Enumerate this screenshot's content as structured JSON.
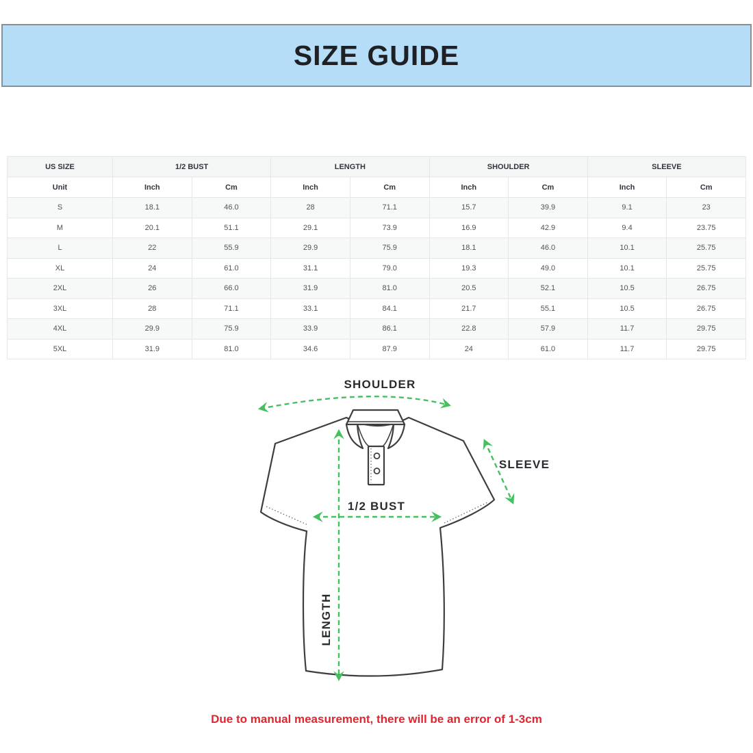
{
  "banner": {
    "title": "SIZE GUIDE"
  },
  "table": {
    "groups": [
      {
        "label": "US SIZE",
        "span": 1
      },
      {
        "label": "1/2 BUST",
        "span": 2
      },
      {
        "label": "LENGTH",
        "span": 2
      },
      {
        "label": "SHOULDER",
        "span": 2
      },
      {
        "label": "SLEEVE",
        "span": 2
      }
    ],
    "unit_row": [
      "Unit",
      "Inch",
      "Cm",
      "Inch",
      "Cm",
      "Inch",
      "Cm",
      "Inch",
      "Cm"
    ],
    "rows": [
      [
        "S",
        "18.1",
        "46.0",
        "28",
        "71.1",
        "15.7",
        "39.9",
        "9.1",
        "23"
      ],
      [
        "M",
        "20.1",
        "51.1",
        "29.1",
        "73.9",
        "16.9",
        "42.9",
        "9.4",
        "23.75"
      ],
      [
        "L",
        "22",
        "55.9",
        "29.9",
        "75.9",
        "18.1",
        "46.0",
        "10.1",
        "25.75"
      ],
      [
        "XL",
        "24",
        "61.0",
        "31.1",
        "79.0",
        "19.3",
        "49.0",
        "10.1",
        "25.75"
      ],
      [
        "2XL",
        "26",
        "66.0",
        "31.9",
        "81.0",
        "20.5",
        "52.1",
        "10.5",
        "26.75"
      ],
      [
        "3XL",
        "28",
        "71.1",
        "33.1",
        "84.1",
        "21.7",
        "55.1",
        "10.5",
        "26.75"
      ],
      [
        "4XL",
        "29.9",
        "75.9",
        "33.9",
        "86.1",
        "22.8",
        "57.9",
        "11.7",
        "29.75"
      ],
      [
        "5XL",
        "31.9",
        "81.0",
        "34.6",
        "87.9",
        "24",
        "61.0",
        "11.7",
        "29.75"
      ]
    ]
  },
  "diagram": {
    "labels": {
      "shoulder": "SHOULDER",
      "sleeve": "SLEEVE",
      "bust": "1/2 BUST",
      "length": "LENGTH"
    },
    "arrow_color": "#44c05e",
    "outline_color": "#3e3e42"
  },
  "note": {
    "text": "Due to manual measurement, there will be an error of 1-3cm",
    "color": "#e02530"
  },
  "colors": {
    "banner_bg": "#b5ddf8",
    "banner_border": "#8a8f96",
    "stripe": "#f7f8f8",
    "table_border": "#e4e6e7"
  }
}
